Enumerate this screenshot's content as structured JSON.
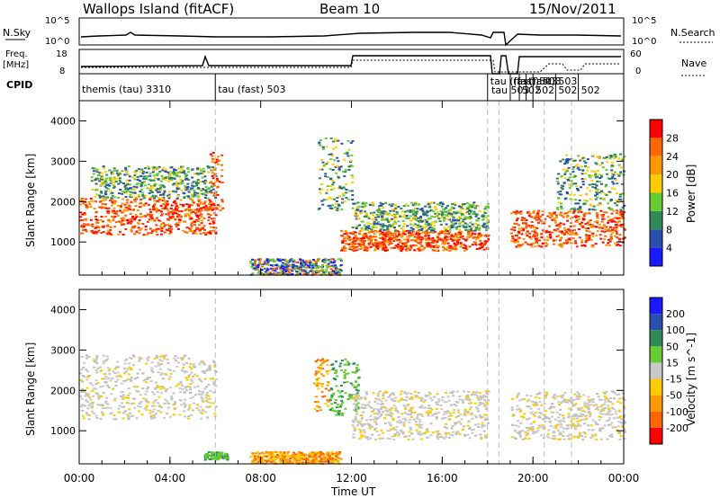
{
  "header": {
    "radar": "Wallops Island (fitACF)",
    "beam": "Beam 10",
    "date": "15/Nov/2011"
  },
  "strip_labels": {
    "nsky": "N.Sky",
    "freq": "Freq.",
    "mhz": "[MHz]",
    "cpid": "CPID",
    "nsearch": "N.Search",
    "nave": "Nave",
    "nsky_hi": "10^5",
    "nsky_lo": "10^0",
    "freq_hi": "18",
    "freq_lo": "8",
    "nave_hi": "60",
    "nave_lo": "0"
  },
  "cpid_segments": [
    {
      "label": "themis (tau) 3310",
      "start_hr": 0.0
    },
    {
      "label": "tau (fast) 503",
      "start_hr": 6.0
    },
    {
      "label": "tau (fast) 503",
      "start_hr": 18.0
    },
    {
      "label": "tau 503",
      "start_hr": 18.05
    },
    {
      "label": "(fast) 503",
      "start_hr": 19.0
    },
    {
      "label": "502",
      "start_hr": 19.4
    },
    {
      "label": "(fast) 503",
      "start_hr": 19.7
    },
    {
      "label": "502",
      "start_hr": 20.0
    },
    {
      "label": "502",
      "start_hr": 21.0
    },
    {
      "label": "502",
      "start_hr": 22.0
    }
  ],
  "chart_data": [
    {
      "type": "heatmap",
      "name": "Power",
      "xlabel": "Time UT",
      "ylabel": "Slant Range [km]",
      "xlim": [
        0,
        24
      ],
      "ylim": [
        180,
        4500
      ],
      "yticks": [
        1000,
        2000,
        3000,
        4000
      ],
      "colorbar": {
        "label": "Power [dB]",
        "ticks": [
          "4",
          "8",
          "12",
          "16",
          "20",
          "24",
          "28"
        ],
        "colors": [
          "#1a1aff",
          "#2a4fb0",
          "#2e8b57",
          "#66cc33",
          "#ffcc00",
          "#ff9900",
          "#ff6600",
          "#ff0000"
        ]
      },
      "features": [
        {
          "t0": 0.0,
          "t1": 6.0,
          "r0": 1200,
          "r1": 2100,
          "level": "high"
        },
        {
          "t0": 0.5,
          "t1": 6.0,
          "r0": 2100,
          "r1": 2900,
          "level": "mid"
        },
        {
          "t0": 5.7,
          "t1": 6.3,
          "r0": 1800,
          "r1": 3300,
          "level": "high"
        },
        {
          "t0": 7.5,
          "t1": 11.5,
          "r0": 200,
          "r1": 600,
          "level": "low"
        },
        {
          "t0": 10.5,
          "t1": 12.0,
          "r0": 1800,
          "r1": 3600,
          "level": "mid"
        },
        {
          "t0": 11.5,
          "t1": 18.0,
          "r0": 800,
          "r1": 1300,
          "level": "high"
        },
        {
          "t0": 12.0,
          "t1": 18.0,
          "r0": 1300,
          "r1": 2000,
          "level": "mid"
        },
        {
          "t0": 19.0,
          "t1": 24.0,
          "r0": 900,
          "r1": 1800,
          "level": "high"
        },
        {
          "t0": 21.0,
          "t1": 24.0,
          "r0": 1800,
          "r1": 3200,
          "level": "mid"
        }
      ]
    },
    {
      "type": "heatmap",
      "name": "Velocity",
      "xlabel": "Time UT",
      "ylabel": "Slant Range [km]",
      "xlim": [
        0,
        24
      ],
      "ylim": [
        180,
        4500
      ],
      "yticks": [
        1000,
        2000,
        3000,
        4000
      ],
      "xticks": [
        "00:00",
        "04:00",
        "08:00",
        "12:00",
        "16:00",
        "20:00",
        "00:00"
      ],
      "colorbar": {
        "label": "Velocity [m s^-1]",
        "ticks": [
          "200",
          "100",
          "50",
          "15",
          "-15",
          "-50",
          "-100",
          "-200"
        ],
        "colors": [
          "#1a1aff",
          "#2a4fb0",
          "#2e8b57",
          "#66cc33",
          "#c8c8c8",
          "#ffcc00",
          "#ff9900",
          "#ff6600",
          "#ff0000"
        ]
      },
      "features": [
        {
          "t0": 0.0,
          "t1": 6.0,
          "r0": 1300,
          "r1": 2900,
          "level": "grey"
        },
        {
          "t0": 5.5,
          "t1": 6.5,
          "r0": 300,
          "r1": 500,
          "level": "green"
        },
        {
          "t0": 7.5,
          "t1": 11.5,
          "r0": 200,
          "r1": 500,
          "level": "orange"
        },
        {
          "t0": 10.3,
          "t1": 11.0,
          "r0": 1500,
          "r1": 2800,
          "level": "orange"
        },
        {
          "t0": 11.0,
          "t1": 12.3,
          "r0": 1400,
          "r1": 2800,
          "level": "green"
        },
        {
          "t0": 12.0,
          "t1": 18.0,
          "r0": 800,
          "r1": 2000,
          "level": "grey"
        },
        {
          "t0": 19.0,
          "t1": 24.0,
          "r0": 800,
          "r1": 2000,
          "level": "grey"
        }
      ]
    }
  ],
  "colors": {
    "frame": "#000000",
    "dash": "#bbbbbb"
  }
}
